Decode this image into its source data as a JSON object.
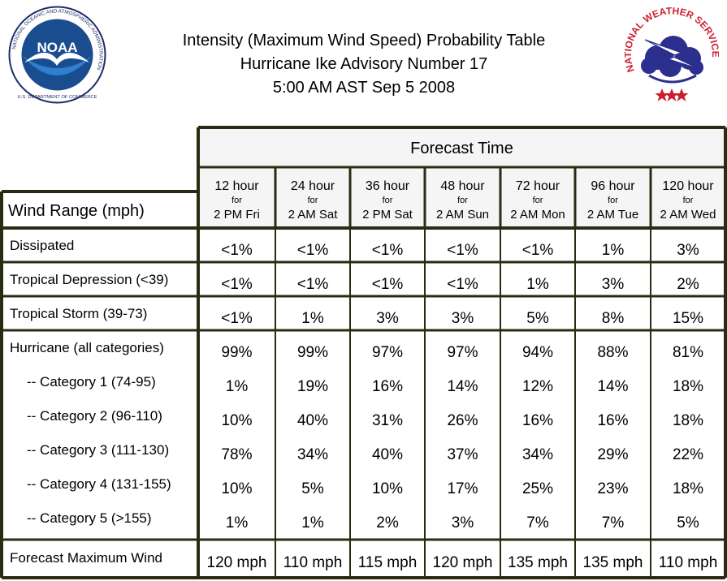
{
  "title_lines": [
    "Intensity (Maximum Wind Speed) Probability Table",
    "Hurricane Ike Advisory Number 17",
    "5:00 AM AST Sep 5 2008"
  ],
  "logos": {
    "noaa": {
      "text": "NOAA",
      "ring_text": "NATIONAL OCEANIC AND ATMOSPHERIC ADMINISTRATION",
      "bottom_text": "U.S. DEPARTMENT OF COMMERCE"
    },
    "nws": {
      "ring_text": "NATIONAL WEATHER SERVICE"
    }
  },
  "table": {
    "forecast_time_label": "Forecast Time",
    "wind_range_label": "Wind Range (mph)",
    "for_label": "for",
    "columns": [
      {
        "hours": "12 hour",
        "time": "2 PM Fri"
      },
      {
        "hours": "24 hour",
        "time": "2 AM Sat"
      },
      {
        "hours": "36 hour",
        "time": "2 PM Sat"
      },
      {
        "hours": "48 hour",
        "time": "2 AM Sun"
      },
      {
        "hours": "72 hour",
        "time": "2 AM Mon"
      },
      {
        "hours": "96 hour",
        "time": "2 AM Tue"
      },
      {
        "hours": "120 hour",
        "time": "2 AM Wed"
      }
    ],
    "rows": [
      {
        "label": "Dissipated",
        "values": [
          "<1%",
          "<1%",
          "<1%",
          "<1%",
          "<1%",
          "1%",
          "3%"
        ]
      },
      {
        "label": "Tropical Depression (<39)",
        "values": [
          "<1%",
          "<1%",
          "<1%",
          "<1%",
          "1%",
          "3%",
          "2%"
        ]
      },
      {
        "label": "Tropical Storm (39-73)",
        "values": [
          "<1%",
          "1%",
          "3%",
          "3%",
          "5%",
          "8%",
          "15%"
        ]
      },
      {
        "label": "Hurricane (all categories)",
        "values": [
          "99%",
          "99%",
          "97%",
          "97%",
          "94%",
          "88%",
          "81%"
        ]
      },
      {
        "label": "-- Category 1 (74-95)",
        "values": [
          "1%",
          "19%",
          "16%",
          "14%",
          "12%",
          "14%",
          "18%"
        ]
      },
      {
        "label": "-- Category 2 (96-110)",
        "values": [
          "10%",
          "40%",
          "31%",
          "26%",
          "16%",
          "16%",
          "18%"
        ]
      },
      {
        "label": "-- Category 3 (111-130)",
        "values": [
          "78%",
          "34%",
          "40%",
          "37%",
          "34%",
          "29%",
          "22%"
        ]
      },
      {
        "label": "-- Category 4 (131-155)",
        "values": [
          "10%",
          "5%",
          "10%",
          "17%",
          "25%",
          "23%",
          "18%"
        ]
      },
      {
        "label": "-- Category 5 (>155)",
        "values": [
          "1%",
          "1%",
          "2%",
          "3%",
          "7%",
          "7%",
          "5%"
        ]
      }
    ],
    "max_wind": {
      "label": "Forecast Maximum Wind",
      "values": [
        "120 mph",
        "110 mph",
        "115 mph",
        "120 mph",
        "135 mph",
        "135 mph",
        "110 mph"
      ]
    }
  },
  "colors": {
    "border": "#2b2b14",
    "header_bg": "#f5f5f5",
    "noaa_blue": "#1a4d8f",
    "nws_red": "#cc1f2e"
  }
}
